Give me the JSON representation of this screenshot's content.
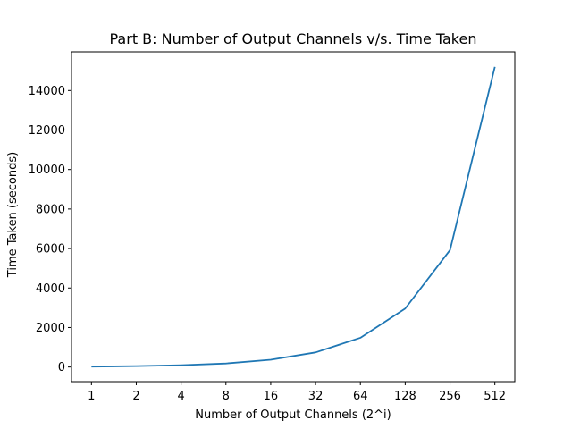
{
  "chart_data": {
    "type": "line",
    "title": "Part B: Number of Output Channels v/s. Time Taken",
    "xlabel": "Number of Output Channels (2^i)",
    "ylabel": "Time Taken (seconds)",
    "categories": [
      "1",
      "2",
      "4",
      "8",
      "16",
      "32",
      "64",
      "128",
      "256",
      "512"
    ],
    "series": [
      {
        "values": [
          20,
          45,
          90,
          180,
          370,
          740,
          1480,
          2960,
          5920,
          15200
        ],
        "color": "#1f77b4"
      }
    ],
    "yticks": [
      0,
      2000,
      4000,
      6000,
      8000,
      10000,
      12000,
      14000
    ],
    "ylim": [
      -740,
      15960
    ],
    "grid": false,
    "legend": false
  }
}
